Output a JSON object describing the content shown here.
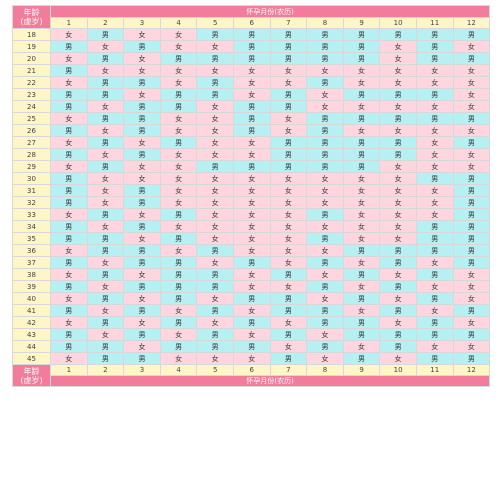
{
  "corner_label": "年龄\n(虚岁)",
  "header_title": "怀孕月份(农历)",
  "footer_title": "怀孕月份(农历)",
  "months": [
    "1",
    "2",
    "3",
    "4",
    "5",
    "6",
    "7",
    "8",
    "9",
    "10",
    "11",
    "12"
  ],
  "legend_values": {
    "boy": "男",
    "girl": "女"
  },
  "colors": {
    "header": "#f27c9c",
    "age_column": "#fff6c8",
    "boy_cell": "#b6f0f2",
    "girl_cell": "#ffd6e0"
  },
  "rows": [
    {
      "age": "18",
      "cells": [
        "女",
        "男",
        "女",
        "女",
        "男",
        "男",
        "男",
        "男",
        "男",
        "男",
        "男",
        "男"
      ]
    },
    {
      "age": "19",
      "cells": [
        "男",
        "女",
        "男",
        "女",
        "女",
        "男",
        "男",
        "男",
        "男",
        "女",
        "男",
        "女"
      ]
    },
    {
      "age": "20",
      "cells": [
        "女",
        "男",
        "女",
        "男",
        "男",
        "男",
        "男",
        "男",
        "男",
        "女",
        "男",
        "男"
      ]
    },
    {
      "age": "21",
      "cells": [
        "男",
        "女",
        "女",
        "女",
        "女",
        "女",
        "女",
        "女",
        "女",
        "女",
        "女",
        "女"
      ]
    },
    {
      "age": "22",
      "cells": [
        "女",
        "男",
        "男",
        "女",
        "男",
        "女",
        "女",
        "男",
        "女",
        "女",
        "女",
        "女"
      ]
    },
    {
      "age": "23",
      "cells": [
        "男",
        "男",
        "女",
        "男",
        "男",
        "女",
        "男",
        "女",
        "男",
        "男",
        "男",
        "女"
      ]
    },
    {
      "age": "24",
      "cells": [
        "男",
        "女",
        "男",
        "男",
        "女",
        "男",
        "男",
        "女",
        "女",
        "女",
        "女",
        "女"
      ]
    },
    {
      "age": "25",
      "cells": [
        "女",
        "男",
        "男",
        "女",
        "女",
        "男",
        "女",
        "男",
        "男",
        "男",
        "男",
        "男"
      ]
    },
    {
      "age": "26",
      "cells": [
        "男",
        "女",
        "男",
        "女",
        "女",
        "男",
        "女",
        "男",
        "女",
        "女",
        "女",
        "女"
      ]
    },
    {
      "age": "27",
      "cells": [
        "女",
        "男",
        "女",
        "男",
        "女",
        "女",
        "男",
        "男",
        "男",
        "男",
        "女",
        "男"
      ]
    },
    {
      "age": "28",
      "cells": [
        "男",
        "女",
        "男",
        "女",
        "女",
        "女",
        "男",
        "男",
        "男",
        "男",
        "女",
        "女"
      ]
    },
    {
      "age": "29",
      "cells": [
        "女",
        "男",
        "女",
        "女",
        "男",
        "男",
        "男",
        "男",
        "男",
        "女",
        "女",
        "女"
      ]
    },
    {
      "age": "30",
      "cells": [
        "男",
        "女",
        "女",
        "女",
        "女",
        "女",
        "女",
        "女",
        "女",
        "女",
        "男",
        "男"
      ]
    },
    {
      "age": "31",
      "cells": [
        "男",
        "女",
        "男",
        "女",
        "女",
        "女",
        "女",
        "女",
        "女",
        "女",
        "女",
        "男"
      ]
    },
    {
      "age": "32",
      "cells": [
        "男",
        "女",
        "男",
        "女",
        "女",
        "女",
        "女",
        "女",
        "女",
        "女",
        "女",
        "男"
      ]
    },
    {
      "age": "33",
      "cells": [
        "女",
        "男",
        "女",
        "男",
        "女",
        "女",
        "女",
        "男",
        "女",
        "女",
        "女",
        "男"
      ]
    },
    {
      "age": "34",
      "cells": [
        "男",
        "女",
        "男",
        "女",
        "女",
        "女",
        "女",
        "女",
        "女",
        "女",
        "男",
        "男"
      ]
    },
    {
      "age": "35",
      "cells": [
        "男",
        "男",
        "女",
        "男",
        "女",
        "女",
        "女",
        "男",
        "女",
        "女",
        "男",
        "男"
      ]
    },
    {
      "age": "36",
      "cells": [
        "女",
        "男",
        "男",
        "女",
        "男",
        "女",
        "女",
        "女",
        "男",
        "男",
        "男",
        "男"
      ]
    },
    {
      "age": "37",
      "cells": [
        "男",
        "女",
        "男",
        "男",
        "女",
        "男",
        "女",
        "男",
        "女",
        "男",
        "女",
        "男"
      ]
    },
    {
      "age": "38",
      "cells": [
        "女",
        "男",
        "女",
        "男",
        "男",
        "女",
        "男",
        "女",
        "男",
        "女",
        "男",
        "女"
      ]
    },
    {
      "age": "39",
      "cells": [
        "男",
        "女",
        "男",
        "男",
        "男",
        "女",
        "女",
        "男",
        "女",
        "男",
        "女",
        "女"
      ]
    },
    {
      "age": "40",
      "cells": [
        "女",
        "男",
        "女",
        "男",
        "女",
        "男",
        "男",
        "女",
        "男",
        "女",
        "男",
        "女"
      ]
    },
    {
      "age": "41",
      "cells": [
        "男",
        "女",
        "男",
        "女",
        "男",
        "女",
        "男",
        "男",
        "女",
        "男",
        "女",
        "男"
      ]
    },
    {
      "age": "42",
      "cells": [
        "女",
        "男",
        "女",
        "男",
        "女",
        "男",
        "女",
        "男",
        "男",
        "女",
        "男",
        "女"
      ]
    },
    {
      "age": "43",
      "cells": [
        "男",
        "女",
        "男",
        "女",
        "男",
        "女",
        "男",
        "女",
        "男",
        "男",
        "男",
        "男"
      ]
    },
    {
      "age": "44",
      "cells": [
        "男",
        "男",
        "女",
        "男",
        "男",
        "男",
        "女",
        "男",
        "女",
        "男",
        "女",
        "女"
      ]
    },
    {
      "age": "45",
      "cells": [
        "女",
        "男",
        "男",
        "女",
        "女",
        "女",
        "男",
        "女",
        "男",
        "女",
        "男",
        "男"
      ]
    }
  ]
}
